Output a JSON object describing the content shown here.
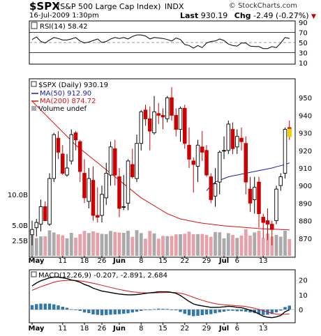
{
  "header": {
    "symbol": "$SPX",
    "name": "(S&P 500 Large Cap Index)",
    "exchange": "INDX",
    "watermark": "© StockCharts.com",
    "datetime": "16-Jul-2009 1:30pm",
    "last_label": "Last",
    "last_value": "930.19",
    "chg_label": "Chg",
    "chg_value": "-2.49 (-0.27%)"
  },
  "rsi_panel": {
    "label": "RSI(14) 58.42"
  },
  "price_panel": {
    "label_symbol": "$SPX (Daily) 930.19",
    "label_ma50": "MA(50) 912.90",
    "label_ma200": "MA(200) 874.72",
    "label_volume": "Volume undef"
  },
  "macd_panel": {
    "label": "MACD(12,26,9) -0.207, -2.891, 2.684"
  },
  "colors": {
    "up": "#000000",
    "down": "#cc0000",
    "ma50": "#1a1ab0",
    "ma200": "#dd1111",
    "vol_up": "#aaaaaa",
    "vol_down": "#e6a0a8",
    "macd_line": "#000000",
    "signal_line": "#dd1111",
    "histogram": "#3377aa",
    "last_marker": "#e8d200"
  },
  "chart_data": [
    {
      "type": "line",
      "name": "RSI(14)",
      "ylim": [
        10,
        90
      ],
      "yticks": [
        10,
        30,
        50,
        70,
        90
      ],
      "reference_lines": [
        30,
        50,
        70
      ],
      "values": [
        56,
        61,
        52,
        49,
        55,
        60,
        58,
        55,
        55,
        57,
        60,
        53,
        49,
        51,
        54,
        57,
        50,
        52,
        57,
        60,
        58,
        60,
        57,
        62,
        65,
        65,
        63,
        57,
        60,
        59,
        58,
        56,
        53,
        59,
        56,
        46,
        44,
        39,
        44,
        40,
        49,
        52,
        53,
        57,
        54,
        47,
        44,
        43,
        49,
        49,
        43,
        42,
        42,
        38,
        38,
        42,
        40,
        49,
        60,
        58
      ]
    },
    {
      "type": "candlestick",
      "name": "$SPX",
      "ylim": [
        860,
        960
      ],
      "yticks": [
        870,
        880,
        890,
        900,
        910,
        920,
        930,
        940,
        950
      ],
      "x_labels": [
        "May",
        "11",
        "18",
        "26",
        "Jun",
        "8",
        "15",
        "22",
        "29",
        "Jul",
        "6",
        "13"
      ],
      "ohlc": [
        [
          872,
          880,
          866,
          875
        ],
        [
          876,
          881,
          871,
          879
        ],
        [
          878,
          892,
          874,
          888
        ],
        [
          888,
          891,
          880,
          880
        ],
        [
          878,
          907,
          877,
          904
        ],
        [
          904,
          930,
          902,
          929
        ],
        [
          927,
          931,
          915,
          919
        ],
        [
          918,
          923,
          906,
          907
        ],
        [
          906,
          918,
          905,
          910
        ],
        [
          914,
          932,
          912,
          929
        ],
        [
          930,
          931,
          920,
          926
        ],
        [
          925,
          926,
          902,
          908
        ],
        [
          907,
          915,
          890,
          893
        ],
        [
          891,
          910,
          887,
          904
        ],
        [
          903,
          911,
          880,
          883
        ],
        [
          883,
          899,
          879,
          882
        ],
        [
          883,
          900,
          879,
          895
        ],
        [
          893,
          913,
          889,
          907
        ],
        [
          906,
          925,
          900,
          922
        ],
        [
          921,
          926,
          900,
          906
        ],
        [
          905,
          910,
          882,
          887
        ],
        [
          888,
          906,
          886,
          888
        ],
        [
          890,
          915,
          886,
          914
        ],
        [
          912,
          921,
          904,
          905
        ],
        [
          904,
          929,
          902,
          924
        ],
        [
          924,
          943,
          920,
          942
        ],
        [
          943,
          946,
          934,
          938
        ],
        [
          938,
          945,
          920,
          931
        ],
        [
          930,
          951,
          929,
          942
        ],
        [
          941,
          947,
          935,
          940
        ],
        [
          940,
          944,
          932,
          939
        ],
        [
          938,
          951,
          936,
          950
        ],
        [
          950,
          956,
          937,
          940
        ],
        [
          940,
          944,
          928,
          932
        ],
        [
          932,
          945,
          925,
          944
        ],
        [
          944,
          946,
          921,
          924
        ],
        [
          923,
          933,
          910,
          915
        ],
        [
          914,
          916,
          896,
          912
        ],
        [
          911,
          926,
          902,
          923
        ],
        [
          922,
          931,
          914,
          919
        ],
        [
          920,
          923,
          905,
          906
        ],
        [
          905,
          907,
          890,
          892
        ],
        [
          894,
          910,
          888,
          901
        ],
        [
          902,
          920,
          895,
          919
        ],
        [
          920,
          928,
          915,
          920
        ],
        [
          920,
          937,
          918,
          935
        ],
        [
          932,
          936,
          918,
          921
        ],
        [
          922,
          932,
          918,
          928
        ],
        [
          927,
          933,
          920,
          925
        ],
        [
          924,
          928,
          895,
          902
        ],
        [
          898,
          905,
          885,
          890
        ],
        [
          892,
          905,
          884,
          899
        ],
        [
          902,
          905,
          876,
          884
        ],
        [
          882,
          884,
          870,
          879
        ],
        [
          880,
          887,
          869,
          878
        ],
        [
          878,
          880,
          866,
          875
        ],
        [
          880,
          900,
          878,
          898
        ],
        [
          900,
          907,
          897,
          905
        ],
        [
          907,
          933,
          904,
          932
        ],
        [
          933,
          937,
          926,
          930
        ]
      ],
      "ma50": [
        null,
        null,
        null,
        null,
        null,
        null,
        null,
        null,
        null,
        null,
        null,
        null,
        null,
        null,
        null,
        null,
        null,
        null,
        null,
        null,
        null,
        null,
        null,
        null,
        null,
        null,
        null,
        null,
        null,
        null,
        null,
        null,
        null,
        null,
        null,
        null,
        null,
        null,
        null,
        null,
        897,
        900,
        902,
        903,
        904,
        905,
        905.5,
        906,
        906.5,
        907,
        907.5,
        908,
        908.5,
        909,
        909.5,
        910,
        910.7,
        911.3,
        912,
        912.9
      ],
      "ma200": [
        948,
        945.5,
        943,
        940.5,
        938,
        935.5,
        933,
        930.5,
        928,
        925.5,
        923,
        921,
        919,
        917,
        915,
        913,
        911,
        909,
        907,
        905,
        903,
        901,
        899,
        897,
        895,
        893,
        891.5,
        890,
        888.5,
        887,
        885.5,
        884,
        883,
        882,
        881,
        880.5,
        880,
        879.5,
        879,
        878.6,
        878.3,
        878,
        877.7,
        877.4,
        877.1,
        876.9,
        876.7,
        876.5,
        876.3,
        876.1,
        875.9,
        875.7,
        875.5,
        875.4,
        875.3,
        875.2,
        875.1,
        875,
        874.9,
        874.72
      ],
      "volume_axis": {
        "ylim": [
          0,
          12500000000
        ],
        "ticks": [
          2500000000,
          5000000000,
          10000000000
        ],
        "tick_labels": [
          "2.5B",
          "5.0B",
          "10.0B"
        ]
      }
    },
    {
      "type": "line",
      "name": "MACD(12,26,9)",
      "ylim": [
        -8,
        26
      ],
      "yticks": [
        0,
        10,
        20
      ],
      "macd": [
        16,
        18,
        19.5,
        20.5,
        21.5,
        22,
        22,
        21.5,
        21,
        20,
        19.5,
        18.5,
        17,
        16,
        14.5,
        13.5,
        12.5,
        12,
        11.5,
        11,
        10.5,
        10.2,
        10,
        10,
        10.2,
        10.5,
        11,
        11.3,
        11.6,
        12,
        12,
        12,
        11.6,
        11,
        9.5,
        7.5,
        5.5,
        3.8,
        3,
        2.5,
        2,
        1.5,
        1.5,
        1.6,
        1.8,
        2.2,
        2,
        1.5,
        1.3,
        0.5,
        -0.5,
        -1.5,
        -3,
        -4.5,
        -5.2,
        -5.5,
        -5,
        -4,
        -1.5,
        -0.2
      ],
      "signal": [
        13,
        14.3,
        15.5,
        16.5,
        17.5,
        18.5,
        19.2,
        19.6,
        19.8,
        19.8,
        19.7,
        19.4,
        19,
        18.4,
        17.8,
        17.1,
        16.4,
        15.7,
        15,
        14.3,
        13.6,
        13,
        12.5,
        12,
        11.7,
        11.4,
        11.3,
        11.3,
        11.3,
        11.4,
        11.5,
        11.6,
        11.6,
        11.5,
        11.1,
        10.4,
        9.4,
        8.3,
        7.2,
        6.3,
        5.4,
        4.6,
        4,
        3.5,
        3.2,
        3,
        2.8,
        2.6,
        2.4,
        2,
        1.5,
        0.9,
        0.1,
        -0.8,
        -1.7,
        -2.5,
        -3.1,
        -3.3,
        -3.2,
        -2.891
      ]
    }
  ]
}
